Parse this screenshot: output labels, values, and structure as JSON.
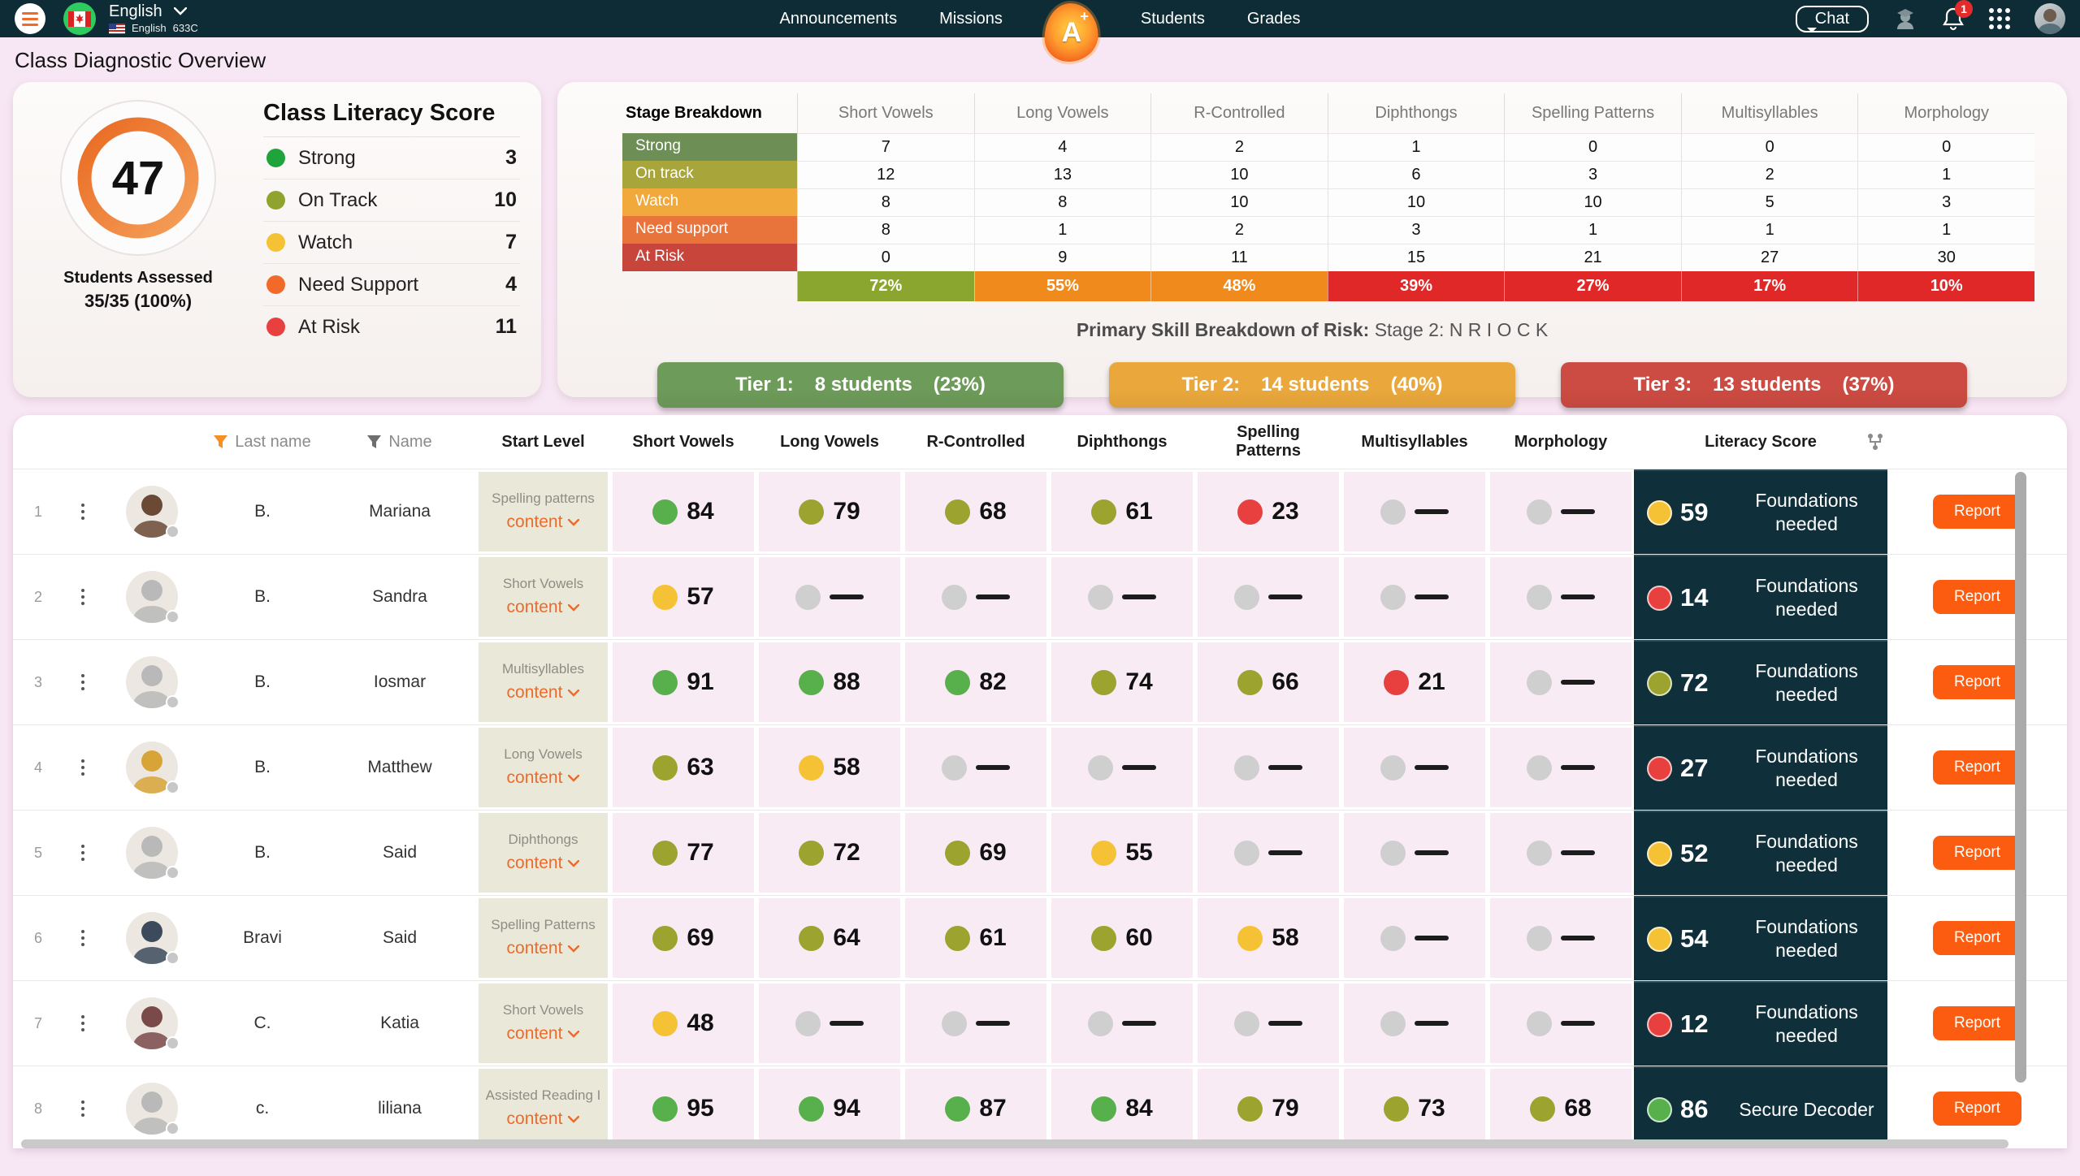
{
  "colors": {
    "green": "#57b04b",
    "olive": "#9ca42f",
    "yellow": "#f6c235",
    "red": "#e8403f",
    "gray": "#cfcfcf",
    "accent_orange": "#ee6a2a",
    "navy": "#0f2f3a"
  },
  "navbar": {
    "language": {
      "label": "English",
      "sub_label": "English",
      "code": "633C"
    },
    "items": [
      {
        "label": "Announcements"
      },
      {
        "label": "Missions"
      },
      {
        "label": "Students"
      },
      {
        "label": "Grades"
      }
    ],
    "logo_letter": "A",
    "logo_plus": "+",
    "chat_label": "Chat",
    "notification_count": "1"
  },
  "page_title": "Class Diagnostic Overview",
  "literacy_card": {
    "title": "Class Literacy Score",
    "score": "47",
    "assessed_label": "Students Assessed",
    "assessed_value": "35/35 (100%)",
    "legend": [
      {
        "label": "Strong",
        "value": "3",
        "color": "#1ea43a"
      },
      {
        "label": "On Track",
        "value": "10",
        "color": "#8fa32e"
      },
      {
        "label": "Watch",
        "value": "7",
        "color": "#f6c235"
      },
      {
        "label": "Need Support",
        "value": "4",
        "color": "#f26a2a"
      },
      {
        "label": "At Risk",
        "value": "11",
        "color": "#e8403f"
      }
    ]
  },
  "stage_breakdown": {
    "title": "Stage Breakdown",
    "columns": [
      "Short Vowels",
      "Long Vowels",
      "R-Controlled",
      "Diphthongs",
      "Spelling Patterns",
      "Multisyllables",
      "Morphology"
    ],
    "rows": [
      {
        "label": "Strong",
        "color": "#6d8e55",
        "values": [
          "7",
          "4",
          "2",
          "1",
          "0",
          "0",
          "0"
        ]
      },
      {
        "label": "On track",
        "color": "#a8a53b",
        "values": [
          "12",
          "13",
          "10",
          "6",
          "3",
          "2",
          "1"
        ]
      },
      {
        "label": "Watch",
        "color": "#f2a93c",
        "values": [
          "8",
          "8",
          "10",
          "10",
          "10",
          "5",
          "3"
        ]
      },
      {
        "label": "Need support",
        "color": "#e8743c",
        "values": [
          "8",
          "1",
          "2",
          "3",
          "1",
          "1",
          "1"
        ]
      },
      {
        "label": "At Risk",
        "color": "#c8453c",
        "values": [
          "0",
          "9",
          "11",
          "15",
          "21",
          "27",
          "30"
        ]
      }
    ],
    "percent_row": [
      {
        "value": "72%",
        "color": "#8ba62e"
      },
      {
        "value": "55%",
        "color": "#f08a1d"
      },
      {
        "value": "48%",
        "color": "#f08a1d"
      },
      {
        "value": "39%",
        "color": "#e02828"
      },
      {
        "value": "27%",
        "color": "#e02828"
      },
      {
        "value": "17%",
        "color": "#e02828"
      },
      {
        "value": "10%",
        "color": "#e02828"
      }
    ],
    "risk_label": "Primary Skill Breakdown of Risk:",
    "risk_value": "Stage 2: N R I O C K",
    "tiers": [
      {
        "label": "Tier 1:",
        "students": "8 students",
        "pct": "(23%)",
        "color": "#6d9b59"
      },
      {
        "label": "Tier 2:",
        "students": "14 students",
        "pct": "(40%)",
        "color": "#eaa83c"
      },
      {
        "label": "Tier 3:",
        "students": "13 students",
        "pct": "(37%)",
        "color": "#cc4b42"
      }
    ]
  },
  "table": {
    "headers": {
      "last_name": "Last name",
      "name": "Name",
      "start_level": "Start Level",
      "skills": [
        "Short Vowels",
        "Long Vowels",
        "R-Controlled",
        "Diphthongs",
        "Spelling Patterns",
        "Multisyllables",
        "Morphology"
      ],
      "literacy": "Literacy  Score"
    },
    "content_label": "content",
    "report_label": "Report",
    "rows": [
      {
        "num": "1",
        "last": "B.",
        "first": "Mariana",
        "start": "Spelling patterns",
        "avatar": "#6b4a35",
        "cells": [
          {
            "s": "84",
            "c": "green"
          },
          {
            "s": "79",
            "c": "olive"
          },
          {
            "s": "68",
            "c": "olive"
          },
          {
            "s": "61",
            "c": "olive"
          },
          {
            "s": "23",
            "c": "red"
          },
          {
            "s": null
          },
          {
            "s": null
          }
        ],
        "lit": {
          "s": "59",
          "c": "yellow",
          "label": "Foundations needed"
        }
      },
      {
        "num": "2",
        "last": "B.",
        "first": "Sandra",
        "start": "Short Vowels",
        "avatar": "#b9b9b9",
        "cells": [
          {
            "s": "57",
            "c": "yellow"
          },
          {
            "s": null
          },
          {
            "s": null
          },
          {
            "s": null
          },
          {
            "s": null
          },
          {
            "s": null
          },
          {
            "s": null
          }
        ],
        "lit": {
          "s": "14",
          "c": "red",
          "label": "Foundations needed"
        }
      },
      {
        "num": "3",
        "last": "B.",
        "first": "Iosmar",
        "start": "Multisyllables",
        "avatar": "#b9b9b9",
        "cells": [
          {
            "s": "91",
            "c": "green"
          },
          {
            "s": "88",
            "c": "green"
          },
          {
            "s": "82",
            "c": "green"
          },
          {
            "s": "74",
            "c": "olive"
          },
          {
            "s": "66",
            "c": "olive"
          },
          {
            "s": "21",
            "c": "red"
          },
          {
            "s": null
          }
        ],
        "lit": {
          "s": "72",
          "c": "olive",
          "label": "Foundations needed"
        }
      },
      {
        "num": "4",
        "last": "B.",
        "first": "Matthew",
        "start": "Long Vowels",
        "avatar": "#d8a437",
        "cells": [
          {
            "s": "63",
            "c": "olive"
          },
          {
            "s": "58",
            "c": "yellow"
          },
          {
            "s": null
          },
          {
            "s": null
          },
          {
            "s": null
          },
          {
            "s": null
          },
          {
            "s": null
          }
        ],
        "lit": {
          "s": "27",
          "c": "red",
          "label": "Foundations needed"
        }
      },
      {
        "num": "5",
        "last": "B.",
        "first": "Said",
        "start": "Diphthongs",
        "avatar": "#b9b9b9",
        "cells": [
          {
            "s": "77",
            "c": "olive"
          },
          {
            "s": "72",
            "c": "olive"
          },
          {
            "s": "69",
            "c": "olive"
          },
          {
            "s": "55",
            "c": "yellow"
          },
          {
            "s": null
          },
          {
            "s": null
          },
          {
            "s": null
          }
        ],
        "lit": {
          "s": "52",
          "c": "yellow",
          "label": "Foundations needed"
        }
      },
      {
        "num": "6",
        "last": "Bravi",
        "first": "Said",
        "start": "Spelling Patterns",
        "avatar": "#3c4a5c",
        "cells": [
          {
            "s": "69",
            "c": "olive"
          },
          {
            "s": "64",
            "c": "olive"
          },
          {
            "s": "61",
            "c": "olive"
          },
          {
            "s": "60",
            "c": "olive"
          },
          {
            "s": "58",
            "c": "yellow"
          },
          {
            "s": null
          },
          {
            "s": null
          }
        ],
        "lit": {
          "s": "54",
          "c": "yellow",
          "label": "Foundations needed"
        }
      },
      {
        "num": "7",
        "last": "C.",
        "first": "Katia",
        "start": "Short Vowels",
        "avatar": "#7a4a4a",
        "cells": [
          {
            "s": "48",
            "c": "yellow"
          },
          {
            "s": null
          },
          {
            "s": null
          },
          {
            "s": null
          },
          {
            "s": null
          },
          {
            "s": null
          },
          {
            "s": null
          }
        ],
        "lit": {
          "s": "12",
          "c": "red",
          "label": "Foundations needed"
        }
      },
      {
        "num": "8",
        "last": "c.",
        "first": "liliana",
        "start": "Assisted Reading I",
        "avatar": "#b9b9b9",
        "cells": [
          {
            "s": "95",
            "c": "green"
          },
          {
            "s": "94",
            "c": "green"
          },
          {
            "s": "87",
            "c": "green"
          },
          {
            "s": "84",
            "c": "green"
          },
          {
            "s": "79",
            "c": "olive"
          },
          {
            "s": "73",
            "c": "olive"
          },
          {
            "s": "68",
            "c": "olive"
          }
        ],
        "lit": {
          "s": "86",
          "c": "green",
          "label": "Secure Decoder"
        }
      }
    ]
  }
}
